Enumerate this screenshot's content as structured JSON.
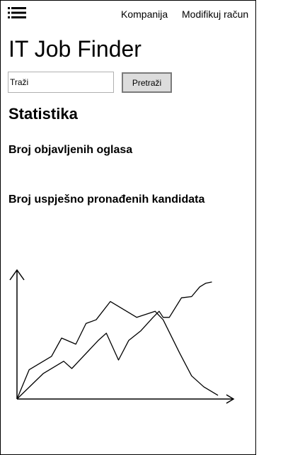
{
  "header": {
    "menu_icon": "hamburger-menu-icon",
    "nav": [
      "Kompanija",
      "Modifikuj račun"
    ]
  },
  "app_title": "IT Job Finder",
  "search": {
    "placeholder": "Traži",
    "button_label": "Pretraži"
  },
  "statistics": {
    "title": "Statistika",
    "items": [
      "Broj objavljenih oglasa",
      "Broj uspješno pronađenih kandidata"
    ]
  },
  "chart_data": {
    "type": "line",
    "title": "",
    "xlabel": "",
    "ylabel": "",
    "grid": false,
    "axis_tick_labels": false,
    "xlim": [
      0,
      100
    ],
    "ylim": [
      0,
      100
    ],
    "series": [
      {
        "x": [
          0,
          6,
          17,
          22,
          29,
          34,
          39,
          46,
          59,
          68,
          72,
          80,
          86,
          92,
          99
        ],
        "y": [
          0,
          24,
          35,
          50,
          45,
          62,
          65,
          80,
          67,
          72,
          65,
          38,
          19,
          10,
          3
        ]
      },
      {
        "x": [
          0,
          13,
          23,
          27,
          40,
          44,
          50,
          55,
          61,
          67,
          70,
          72,
          75,
          81,
          86,
          90,
          93,
          96
        ],
        "y": [
          0,
          21,
          31,
          25,
          48,
          54,
          32,
          48,
          56,
          67,
          72,
          67,
          67,
          83,
          84,
          92,
          95,
          96
        ]
      }
    ]
  }
}
